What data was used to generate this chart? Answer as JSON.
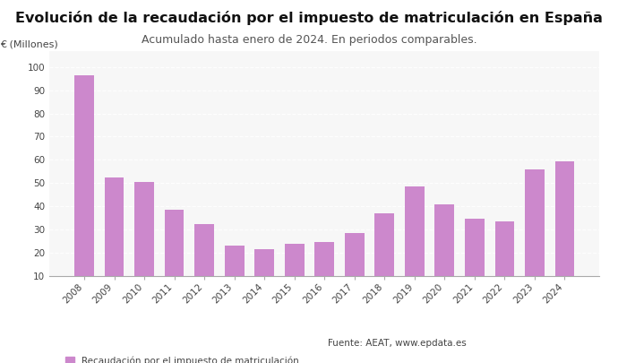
{
  "title": "Evolución de la recaudación por el impuesto de matriculación en España",
  "subtitle": "Acumulado hasta enero de 2024. En periodos comparables.",
  "ylabel": "€ (Millones)",
  "years": [
    2008,
    2009,
    2010,
    2011,
    2012,
    2013,
    2014,
    2015,
    2016,
    2017,
    2018,
    2019,
    2020,
    2021,
    2022,
    2023,
    2024
  ],
  "values": [
    96.5,
    52.5,
    50.3,
    38.5,
    32.5,
    23.0,
    21.5,
    24.0,
    24.5,
    28.5,
    37.0,
    48.5,
    41.0,
    34.5,
    33.5,
    56.0,
    59.4
  ],
  "bar_color": "#cc88cc",
  "background_color": "#ffffff",
  "plot_bg_color": "#f7f7f7",
  "ylim": [
    10,
    107
  ],
  "yticks": [
    10,
    20,
    30,
    40,
    50,
    60,
    70,
    80,
    90,
    100
  ],
  "legend_label": "Recaudación por el impuesto de matriculación",
  "source_text": "Fuente: AEAT, www.epdata.es",
  "title_fontsize": 11.5,
  "subtitle_fontsize": 9,
  "ylabel_fontsize": 8,
  "tick_fontsize": 7.5,
  "legend_fontsize": 7.5
}
